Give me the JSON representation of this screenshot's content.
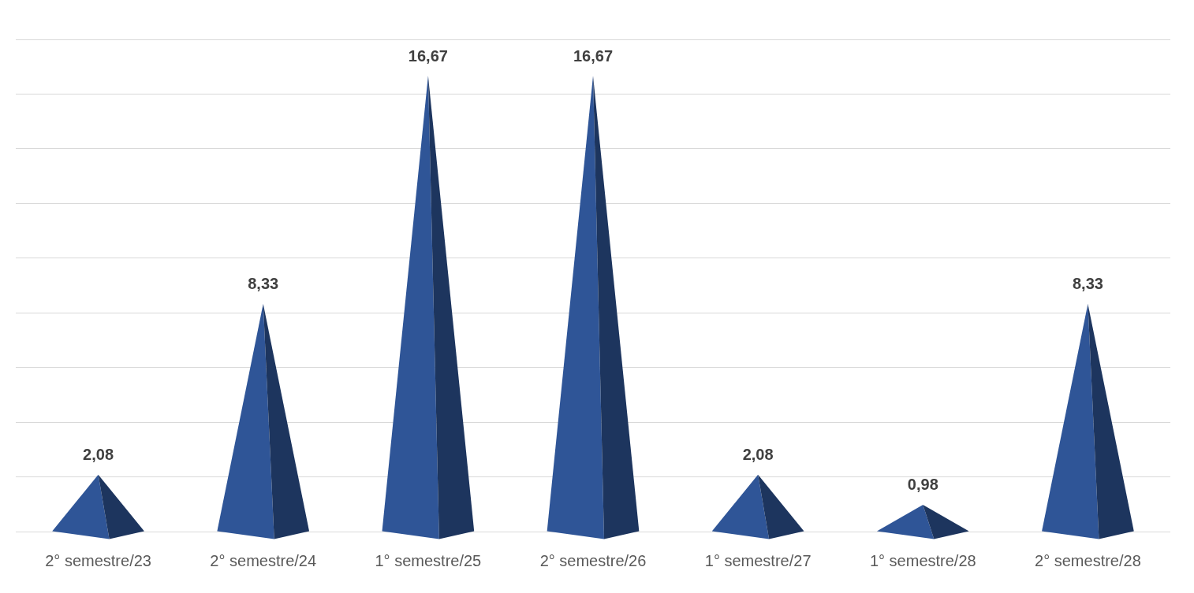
{
  "chart_data": {
    "type": "bar",
    "categories": [
      "2° semestre/23",
      "2° semestre/24",
      "1° semestre/25",
      "2° semestre/26",
      "1° semestre/27",
      "1° semestre/28",
      "2° semestre/28"
    ],
    "values": [
      2.08,
      8.33,
      16.67,
      16.67,
      2.08,
      0.98,
      8.33
    ],
    "value_labels": [
      "2,08",
      "8,33",
      "16,67",
      "16,67",
      "2,08",
      "0,98",
      "8,33"
    ],
    "color": "#2f5597",
    "ylim": [
      0,
      18
    ],
    "yticks": [
      0,
      2,
      4,
      6,
      8,
      10,
      12,
      14,
      16,
      18
    ],
    "grid": true,
    "data_labels": true,
    "tick_labels": "x"
  }
}
